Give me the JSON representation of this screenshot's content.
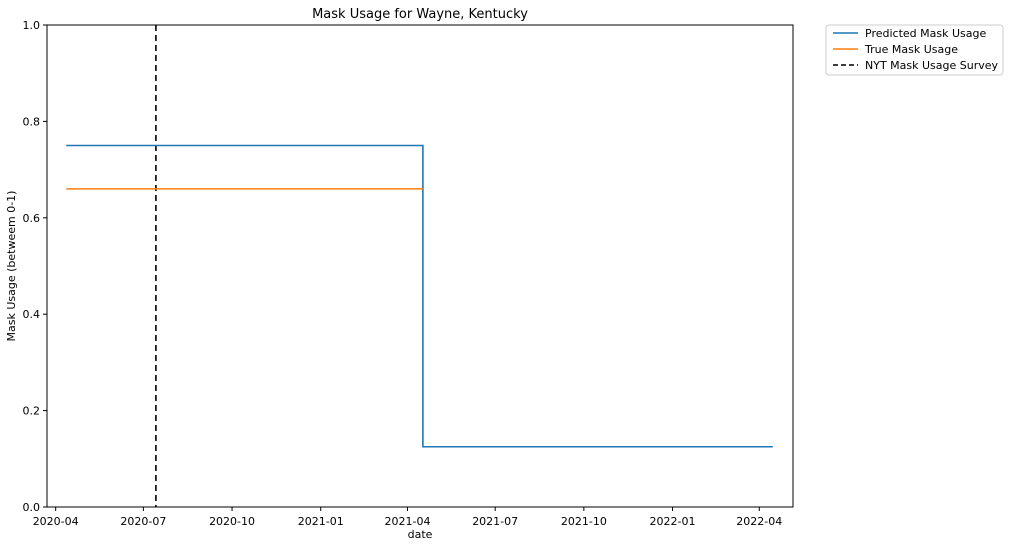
{
  "chart_data": {
    "type": "line",
    "title": "Mask Usage for Wayne, Kentucky",
    "xlabel": "date",
    "ylabel": "Mask Usage (betweem 0-1)",
    "x_axis": {
      "kind": "date",
      "range": [
        "2020-03-23",
        "2022-05-06"
      ],
      "ticks": [
        "2020-04-01",
        "2020-07-01",
        "2020-10-01",
        "2021-01-01",
        "2021-04-01",
        "2021-07-01",
        "2021-10-01",
        "2022-01-01",
        "2022-04-01"
      ],
      "tick_labels": [
        "2020-04",
        "2020-07",
        "2020-10",
        "2021-01",
        "2021-04",
        "2021-07",
        "2021-10",
        "2022-01",
        "2022-04"
      ]
    },
    "y_axis": {
      "range": [
        0,
        1
      ],
      "ticks": [
        0.0,
        0.2,
        0.4,
        0.6,
        0.8,
        1.0
      ],
      "tick_labels": [
        "0.0",
        "0.2",
        "0.4",
        "0.6",
        "0.8",
        "1.0"
      ]
    },
    "grid": false,
    "legend_position": "outside top-right",
    "series": [
      {
        "name": "Predicted Mask Usage",
        "color": "#1f77b4",
        "style": "solid",
        "points": [
          {
            "x": "2020-04-12",
            "y": 0.75
          },
          {
            "x": "2021-04-17",
            "y": 0.75
          },
          {
            "x": "2021-04-17",
            "y": 0.125
          },
          {
            "x": "2022-04-15",
            "y": 0.125
          }
        ]
      },
      {
        "name": "True Mask Usage",
        "color": "#ff7f0e",
        "style": "solid",
        "points": [
          {
            "x": "2020-04-12",
            "y": 0.66
          },
          {
            "x": "2021-04-17",
            "y": 0.66
          }
        ]
      }
    ],
    "vlines": [
      {
        "name": "NYT Mask Usage Survey",
        "color": "#000000",
        "style": "dashed",
        "x": "2020-07-14"
      }
    ]
  }
}
